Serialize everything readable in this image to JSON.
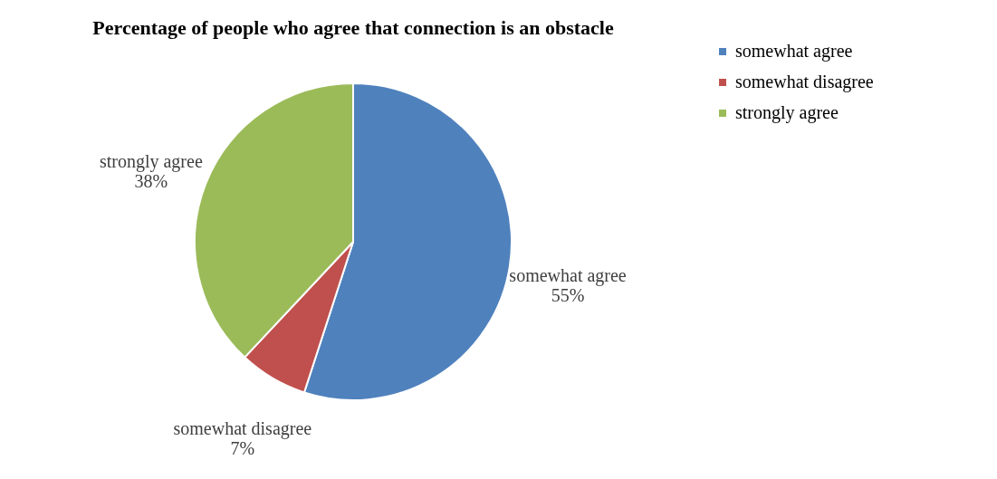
{
  "chart_data": {
    "type": "pie",
    "title": "Percentage of people who agree that connection is an obstacle",
    "categories": [
      "somewhat agree",
      "somewhat disagree",
      "strongly agree"
    ],
    "values": [
      55,
      7,
      38
    ],
    "colors": [
      "#4f81bd",
      "#c0504d",
      "#9bbb59"
    ],
    "value_labels": [
      "55%",
      "7%",
      "38%"
    ],
    "legend": "right"
  }
}
